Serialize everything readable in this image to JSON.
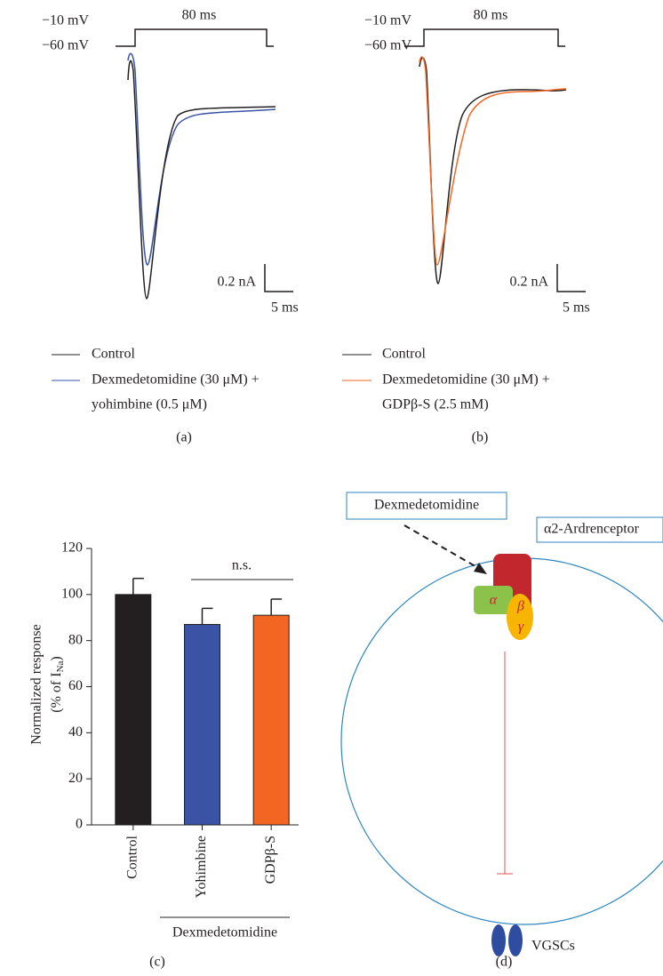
{
  "panel_a": {
    "voltage_high": "−10 mV",
    "voltage_low": "−60 mV",
    "duration": "80 ms",
    "current_scale": "0.2 nA",
    "time_scale": "5 ms",
    "legend": [
      "Control",
      "Dexmedetomidine (30 μM) +",
      "yohimbine (0.5 μM)"
    ],
    "label": "(a)"
  },
  "panel_b": {
    "voltage_high": "−10 mV",
    "voltage_low": "−60 mV",
    "duration": "80 ms",
    "current_scale": "0.2 nA",
    "time_scale": "5 ms",
    "legend": [
      "Control",
      "Dexmedetomidine (30 μM) +",
      "GDPβ-S (2.5 mM)"
    ],
    "label": "(b)"
  },
  "chart_data": {
    "type": "bar",
    "ylabel": [
      "Normalized response",
      "(% of I",
      "Na",
      ")"
    ],
    "categories": [
      "Control",
      "Yohimbine",
      "GDPβ-S"
    ],
    "values": [
      100,
      87,
      91
    ],
    "errors": [
      7,
      7,
      7
    ],
    "colors": [
      "#231f20",
      "#3a53a4",
      "#f26522"
    ],
    "ylim": [
      0,
      120
    ],
    "yticks": [
      0,
      20,
      40,
      60,
      80,
      100,
      120
    ],
    "annotation": "n.s.",
    "group_label": "Dexmedetomidine",
    "label": "(c)"
  },
  "panel_d": {
    "drug": "Dexmedetomidine",
    "receptor": "α2-Ardrenceptor",
    "alpha": "α",
    "beta": "β",
    "gamma": "γ",
    "channel": "VGSCs",
    "label": "(d)"
  }
}
